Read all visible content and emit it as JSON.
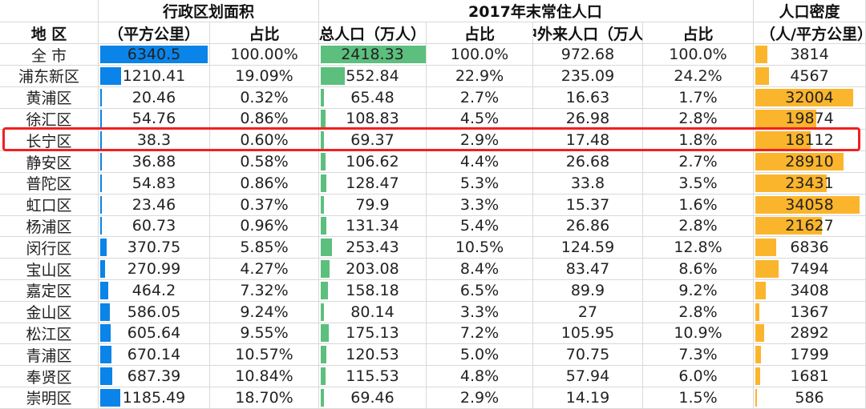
{
  "headers": {
    "area_group": "行政区划面积",
    "pop_group": "2017年末常住人口",
    "density_group": "人口密度",
    "region": "地  区",
    "area": "（平方公里）",
    "area_share": "占比",
    "pop_total": "总人口（万人）",
    "pop_share": "占比",
    "migrant": "中外来人口（万人）",
    "migrant_share": "占比",
    "density": "（人/平方公里）"
  },
  "colors": {
    "area_bar": "#0a84e8",
    "pop_bar": "#5cbf7e",
    "density_bar": "#fbb52c",
    "highlight": "#f02020"
  },
  "highlighted_row": "长宁区",
  "rows": [
    [
      "全  市",
      "6340.5",
      "100.00%",
      "2418.33",
      "100.0%",
      "972.68",
      "100.0%",
      "3814"
    ],
    [
      "浦东新区",
      "1210.41",
      "19.09%",
      "552.84",
      "22.9%",
      "235.09",
      "24.2%",
      "4567"
    ],
    [
      "黄浦区",
      "20.46",
      "0.32%",
      "65.48",
      "2.7%",
      "16.63",
      "1.7%",
      "32004"
    ],
    [
      "徐汇区",
      "54.76",
      "0.86%",
      "108.83",
      "4.5%",
      "26.98",
      "2.8%",
      "19874"
    ],
    [
      "长宁区",
      "38.3",
      "0.60%",
      "69.37",
      "2.9%",
      "17.48",
      "1.8%",
      "18112"
    ],
    [
      "静安区",
      "36.88",
      "0.58%",
      "106.62",
      "4.4%",
      "26.68",
      "2.7%",
      "28910"
    ],
    [
      "普陀区",
      "54.83",
      "0.86%",
      "128.47",
      "5.3%",
      "33.8",
      "3.5%",
      "23431"
    ],
    [
      "虹口区",
      "23.46",
      "0.37%",
      "79.9",
      "3.3%",
      "15.37",
      "1.6%",
      "34058"
    ],
    [
      "杨浦区",
      "60.73",
      "0.96%",
      "131.34",
      "5.4%",
      "26.86",
      "2.8%",
      "21627"
    ],
    [
      "闵行区",
      "370.75",
      "5.85%",
      "253.43",
      "10.5%",
      "124.59",
      "12.8%",
      "6836"
    ],
    [
      "宝山区",
      "270.99",
      "4.27%",
      "203.08",
      "8.4%",
      "83.47",
      "8.6%",
      "7494"
    ],
    [
      "嘉定区",
      "464.2",
      "7.32%",
      "158.18",
      "6.5%",
      "89.9",
      "9.2%",
      "3408"
    ],
    [
      "金山区",
      "586.05",
      "9.24%",
      "80.14",
      "3.3%",
      "27",
      "2.8%",
      "1367"
    ],
    [
      "松江区",
      "605.64",
      "9.55%",
      "175.13",
      "7.2%",
      "105.95",
      "10.9%",
      "2892"
    ],
    [
      "青浦区",
      "670.14",
      "10.57%",
      "120.53",
      "5.0%",
      "70.75",
      "7.3%",
      "1799"
    ],
    [
      "奉贤区",
      "687.39",
      "10.84%",
      "115.53",
      "4.8%",
      "57.94",
      "6.0%",
      "1681"
    ],
    [
      "崇明区",
      "1185.49",
      "18.70%",
      "69.46",
      "2.9%",
      "14.19",
      "1.5%",
      "586"
    ]
  ]
}
